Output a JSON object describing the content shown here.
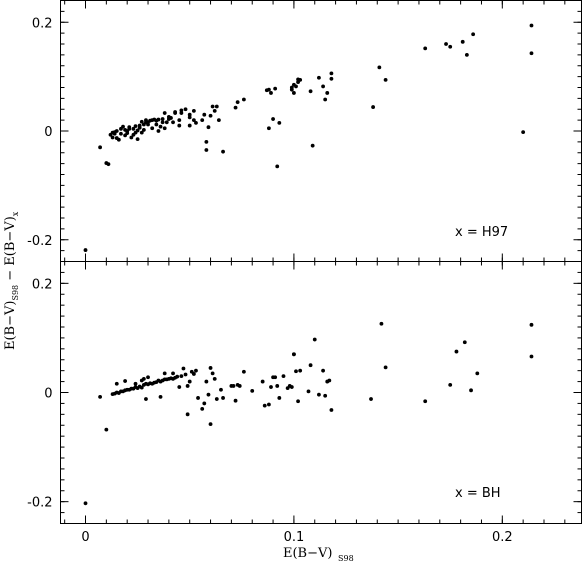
{
  "chart_data": {
    "type": "scatter",
    "shared_x": {
      "range": [
        -0.012,
        0.238
      ],
      "ticks": [
        0,
        0.1,
        0.2
      ],
      "tick_labels": [
        "0",
        "0.1",
        "0.2"
      ],
      "label_main": "E(B−V)",
      "label_sub": "S98"
    },
    "shared_y": {
      "label_main": "E(B−V)",
      "label_sub1": "S98",
      "label_mid": " − E(B−V)",
      "label_sub2": "x"
    },
    "panels": [
      {
        "label": "x = H97",
        "ylim": [
          -0.24,
          0.24
        ],
        "yticks": [
          -0.2,
          0,
          0.2
        ],
        "ytick_labels": [
          "-0.2",
          "0",
          "0.2"
        ],
        "points": [
          [
            0.0,
            -0.219
          ],
          [
            0.007,
            -0.03
          ],
          [
            0.01,
            -0.059
          ],
          [
            0.011,
            -0.061
          ],
          [
            0.012,
            -0.007
          ],
          [
            0.013,
            -0.003
          ],
          [
            0.013,
            -0.012
          ],
          [
            0.014,
            -0.002
          ],
          [
            0.014,
            -0.005
          ],
          [
            0.015,
            0.0
          ],
          [
            0.015,
            -0.013
          ],
          [
            0.016,
            -0.016
          ],
          [
            0.017,
            -0.005
          ],
          [
            0.017,
            0.004
          ],
          [
            0.018,
            0.008
          ],
          [
            0.019,
            -0.008
          ],
          [
            0.019,
            0.002
          ],
          [
            0.02,
            0.0
          ],
          [
            0.02,
            -0.004
          ],
          [
            0.021,
            0.007
          ],
          [
            0.021,
            0.004
          ],
          [
            0.022,
            -0.012
          ],
          [
            0.023,
            -0.007
          ],
          [
            0.023,
            0.004
          ],
          [
            0.024,
            0.009
          ],
          [
            0.024,
            -0.003
          ],
          [
            0.025,
            0.001
          ],
          [
            0.025,
            -0.015
          ],
          [
            0.026,
            0.01
          ],
          [
            0.026,
            0.006
          ],
          [
            0.027,
            0.017
          ],
          [
            0.027,
            -0.003
          ],
          [
            0.028,
            0.012
          ],
          [
            0.028,
            0.002
          ],
          [
            0.029,
            0.02
          ],
          [
            0.029,
            0.016
          ],
          [
            0.03,
            0.016
          ],
          [
            0.03,
            0.012
          ],
          [
            0.031,
            0.019
          ],
          [
            0.032,
            0.005
          ],
          [
            0.032,
            0.02
          ],
          [
            0.033,
            0.021
          ],
          [
            0.034,
            0.019
          ],
          [
            0.034,
            0.012
          ],
          [
            0.035,
            0.0
          ],
          [
            0.035,
            0.021
          ],
          [
            0.036,
            0.008
          ],
          [
            0.037,
            0.022
          ],
          [
            0.037,
            0.016
          ],
          [
            0.038,
            0.005
          ],
          [
            0.038,
            0.033
          ],
          [
            0.039,
            0.016
          ],
          [
            0.04,
            0.022
          ],
          [
            0.04,
            0.026
          ],
          [
            0.041,
            0.024
          ],
          [
            0.042,
            0.016
          ],
          [
            0.043,
            0.033
          ],
          [
            0.043,
            0.035
          ],
          [
            0.045,
            0.02
          ],
          [
            0.045,
            0.01
          ],
          [
            0.046,
            0.038
          ],
          [
            0.046,
            0.033
          ],
          [
            0.048,
            0.04
          ],
          [
            0.05,
            0.03
          ],
          [
            0.05,
            0.025
          ],
          [
            0.05,
            0.01
          ],
          [
            0.052,
            0.037
          ],
          [
            0.052,
            0.02
          ],
          [
            0.053,
            0.015
          ],
          [
            0.056,
            0.02
          ],
          [
            0.057,
            0.03
          ],
          [
            0.058,
            -0.02
          ],
          [
            0.058,
            -0.035
          ],
          [
            0.059,
            0.007
          ],
          [
            0.06,
            0.028
          ],
          [
            0.061,
            0.045
          ],
          [
            0.062,
            0.037
          ],
          [
            0.063,
            0.045
          ],
          [
            0.064,
            0.02
          ],
          [
            0.066,
            -0.038
          ],
          [
            0.072,
            0.043
          ],
          [
            0.073,
            0.053
          ],
          [
            0.076,
            0.058
          ],
          [
            0.087,
            0.075
          ],
          [
            0.088,
            0.005
          ],
          [
            0.088,
            0.076
          ],
          [
            0.089,
            0.07
          ],
          [
            0.09,
            0.022
          ],
          [
            0.091,
            0.078
          ],
          [
            0.092,
            -0.065
          ],
          [
            0.093,
            0.015
          ],
          [
            0.099,
            0.08
          ],
          [
            0.099,
            0.076
          ],
          [
            0.1,
            0.085
          ],
          [
            0.1,
            0.07
          ],
          [
            0.101,
            0.082
          ],
          [
            0.102,
            0.09
          ],
          [
            0.102,
            0.095
          ],
          [
            0.103,
            0.094
          ],
          [
            0.108,
            0.073
          ],
          [
            0.109,
            -0.027
          ],
          [
            0.112,
            0.098
          ],
          [
            0.114,
            0.082
          ],
          [
            0.115,
            0.058
          ],
          [
            0.116,
            0.07
          ],
          [
            0.118,
            0.096
          ],
          [
            0.118,
            0.106
          ],
          [
            0.138,
            0.044
          ],
          [
            0.141,
            0.117
          ],
          [
            0.144,
            0.094
          ],
          [
            0.163,
            0.152
          ],
          [
            0.173,
            0.16
          ],
          [
            0.175,
            0.155
          ],
          [
            0.181,
            0.164
          ],
          [
            0.183,
            0.14
          ],
          [
            0.186,
            0.178
          ],
          [
            0.21,
            -0.002
          ],
          [
            0.214,
            0.194
          ],
          [
            0.214,
            0.143
          ]
        ]
      },
      {
        "label": "x = BH",
        "ylim": [
          -0.24,
          0.24
        ],
        "yticks": [
          -0.2,
          0,
          0.2
        ],
        "ytick_labels": [
          "-0.2",
          "0",
          "0.2"
        ],
        "points": [
          [
            0.0,
            -0.203
          ],
          [
            0.007,
            -0.008
          ],
          [
            0.01,
            -0.068
          ],
          [
            0.013,
            -0.003
          ],
          [
            0.014,
            -0.002
          ],
          [
            0.015,
            0.0
          ],
          [
            0.015,
            0.016
          ],
          [
            0.016,
            -0.001
          ],
          [
            0.017,
            0.002
          ],
          [
            0.018,
            0.002
          ],
          [
            0.019,
            0.004
          ],
          [
            0.019,
            0.021
          ],
          [
            0.02,
            0.005
          ],
          [
            0.021,
            0.005
          ],
          [
            0.022,
            0.007
          ],
          [
            0.023,
            0.007
          ],
          [
            0.024,
            0.01
          ],
          [
            0.024,
            0.016
          ],
          [
            0.025,
            0.008
          ],
          [
            0.026,
            0.011
          ],
          [
            0.027,
            0.009
          ],
          [
            0.027,
            0.022
          ],
          [
            0.028,
            0.014
          ],
          [
            0.028,
            0.025
          ],
          [
            0.029,
            0.016
          ],
          [
            0.029,
            -0.012
          ],
          [
            0.03,
            0.015
          ],
          [
            0.03,
            0.028
          ],
          [
            0.031,
            0.017
          ],
          [
            0.032,
            0.016
          ],
          [
            0.033,
            0.018
          ],
          [
            0.034,
            0.019
          ],
          [
            0.035,
            0.022
          ],
          [
            0.036,
            0.02
          ],
          [
            0.036,
            -0.008
          ],
          [
            0.037,
            0.022
          ],
          [
            0.038,
            0.035
          ],
          [
            0.038,
            0.024
          ],
          [
            0.039,
            0.024
          ],
          [
            0.04,
            0.025
          ],
          [
            0.041,
            0.026
          ],
          [
            0.042,
            0.025
          ],
          [
            0.042,
            0.035
          ],
          [
            0.043,
            0.027
          ],
          [
            0.044,
            0.029
          ],
          [
            0.045,
            0.01
          ],
          [
            0.046,
            0.03
          ],
          [
            0.047,
            0.044
          ],
          [
            0.048,
            0.033
          ],
          [
            0.049,
            0.012
          ],
          [
            0.049,
            -0.04
          ],
          [
            0.05,
            0.02
          ],
          [
            0.051,
            0.038
          ],
          [
            0.052,
            0.034
          ],
          [
            0.053,
            0.04
          ],
          [
            0.054,
            -0.01
          ],
          [
            0.056,
            -0.03
          ],
          [
            0.057,
            -0.02
          ],
          [
            0.058,
            0.02
          ],
          [
            0.059,
            -0.004
          ],
          [
            0.06,
            0.045
          ],
          [
            0.06,
            -0.058
          ],
          [
            0.061,
            0.035
          ],
          [
            0.062,
            0.025
          ],
          [
            0.063,
            -0.012
          ],
          [
            0.065,
            0.005
          ],
          [
            0.066,
            -0.01
          ],
          [
            0.07,
            0.012
          ],
          [
            0.071,
            0.012
          ],
          [
            0.072,
            -0.015
          ],
          [
            0.073,
            0.014
          ],
          [
            0.074,
            0.012
          ],
          [
            0.076,
            0.038
          ],
          [
            0.08,
            0.003
          ],
          [
            0.085,
            0.02
          ],
          [
            0.086,
            -0.024
          ],
          [
            0.088,
            -0.022
          ],
          [
            0.089,
            0.01
          ],
          [
            0.09,
            0.028
          ],
          [
            0.091,
            0.028
          ],
          [
            0.092,
            0.012
          ],
          [
            0.093,
            -0.01
          ],
          [
            0.095,
            0.03
          ],
          [
            0.097,
            0.008
          ],
          [
            0.098,
            0.012
          ],
          [
            0.099,
            0.01
          ],
          [
            0.1,
            0.07
          ],
          [
            0.1,
            0.07
          ],
          [
            0.101,
            0.039
          ],
          [
            0.102,
            -0.016
          ],
          [
            0.103,
            0.04
          ],
          [
            0.107,
            0.002
          ],
          [
            0.108,
            0.05
          ],
          [
            0.11,
            0.097
          ],
          [
            0.112,
            -0.004
          ],
          [
            0.114,
            0.04
          ],
          [
            0.115,
            -0.006
          ],
          [
            0.116,
            0.02
          ],
          [
            0.117,
            0.022
          ],
          [
            0.118,
            -0.032
          ],
          [
            0.137,
            -0.012
          ],
          [
            0.142,
            0.126
          ],
          [
            0.144,
            0.046
          ],
          [
            0.163,
            -0.016
          ],
          [
            0.175,
            0.014
          ],
          [
            0.178,
            0.075
          ],
          [
            0.182,
            0.092
          ],
          [
            0.185,
            0.004
          ],
          [
            0.188,
            0.035
          ],
          [
            0.214,
            0.124
          ],
          [
            0.214,
            0.066
          ]
        ]
      }
    ]
  }
}
